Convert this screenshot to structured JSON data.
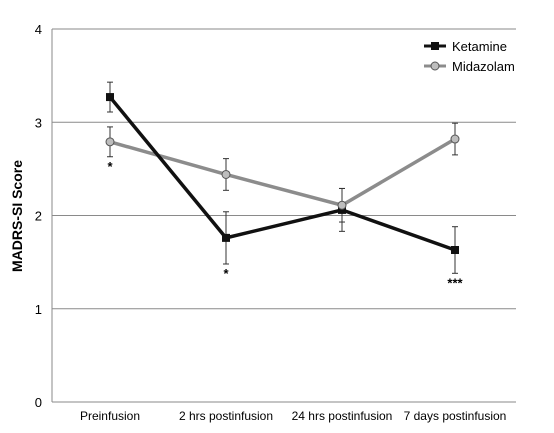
{
  "chart_data": {
    "type": "line",
    "title": "",
    "xlabel": "",
    "ylabel": "MADRS-SI Score",
    "ylim": [
      0,
      4
    ],
    "yticks": [
      0,
      1,
      2,
      3,
      4
    ],
    "grid": "horizontal",
    "legend_position": "top-right",
    "categories": [
      "Preinfusion",
      "2 hrs postinfusion",
      "24 hrs postinfusion",
      "7 days postinfusion"
    ],
    "series": [
      {
        "name": "Ketamine",
        "color": "#111111",
        "marker": "square",
        "values": [
          3.27,
          1.76,
          2.06,
          1.63
        ],
        "error": [
          0.16,
          0.28,
          0.23,
          0.25
        ]
      },
      {
        "name": "Midazolam",
        "color": "#8c8c8c",
        "marker": "circle",
        "values": [
          2.79,
          2.44,
          2.11,
          2.82
        ],
        "error": [
          0.16,
          0.17,
          0.18,
          0.17
        ]
      }
    ],
    "annotations": [
      {
        "category_index": 0,
        "text": "*"
      },
      {
        "category_index": 1,
        "text": "*"
      },
      {
        "category_index": 3,
        "text": "***"
      }
    ]
  }
}
